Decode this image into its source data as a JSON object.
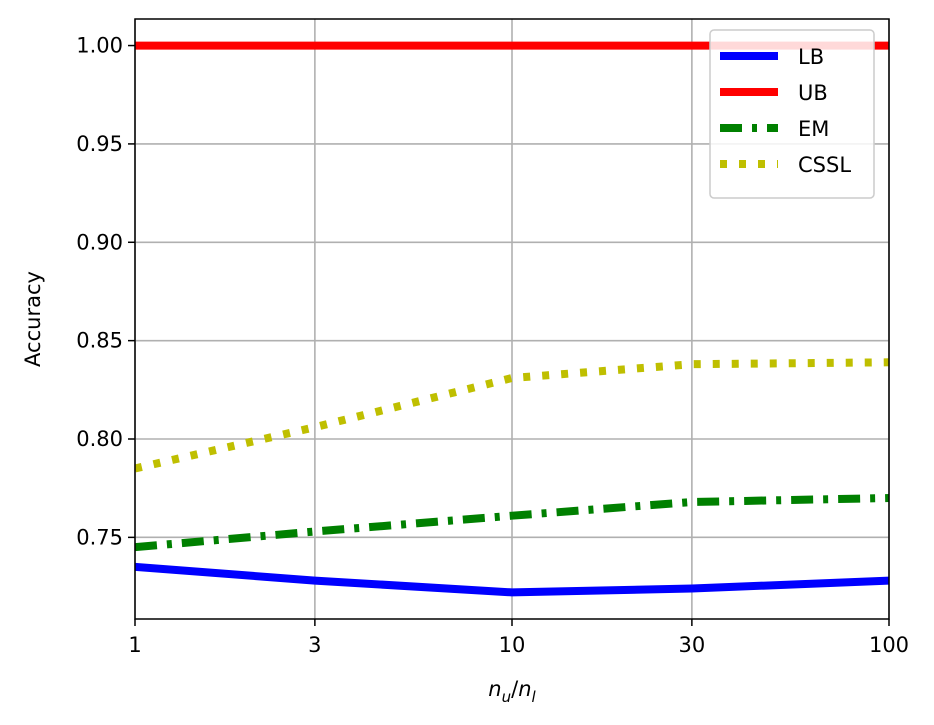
{
  "chart_data": {
    "type": "line",
    "xscale": "log",
    "xlabel": "n_u/n_l",
    "xlabel_main": "n",
    "xlabel_sub1": "u",
    "xlabel_slash": "/",
    "xlabel_sub2": "l",
    "ylabel": "Accuracy",
    "xlim": [
      1,
      100
    ],
    "ylim": [
      0.7085,
      1.0135
    ],
    "x_ticks": [
      1,
      3,
      10,
      30,
      100
    ],
    "x_tick_labels": [
      "1",
      "3",
      "10",
      "30",
      "100"
    ],
    "y_ticks": [
      0.75,
      0.8,
      0.85,
      0.9,
      0.95,
      1.0
    ],
    "y_tick_labels": [
      "0.75",
      "0.80",
      "0.85",
      "0.90",
      "0.95",
      "1.00"
    ],
    "grid": true,
    "legend_position": "top-right",
    "x": [
      1,
      3,
      10,
      30,
      100
    ],
    "series": [
      {
        "name": "LB",
        "color": "#0000ff",
        "dash": "solid",
        "values": [
          0.735,
          0.728,
          0.722,
          0.724,
          0.728
        ]
      },
      {
        "name": "UB",
        "color": "#ff0000",
        "dash": "solid",
        "values": [
          1.0,
          1.0,
          1.0,
          1.0,
          1.0
        ]
      },
      {
        "name": "EM",
        "color": "#008000",
        "dash": "dashdot",
        "values": [
          0.745,
          0.753,
          0.761,
          0.768,
          0.77
        ]
      },
      {
        "name": "CSSL",
        "color": "#bfbf00",
        "dash": "dotted",
        "values": [
          0.785,
          0.806,
          0.831,
          0.838,
          0.839
        ]
      }
    ]
  }
}
